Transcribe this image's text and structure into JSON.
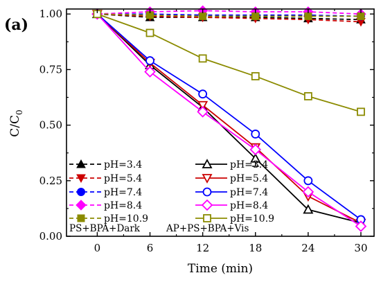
{
  "panel_label": "(a)",
  "chart_data": {
    "type": "line",
    "xlabel": "Time (min)",
    "ylabel_main": "C/C",
    "ylabel_sub": "0",
    "x_ticks": [
      0,
      6,
      12,
      18,
      24,
      30
    ],
    "y_ticks": [
      "0.00",
      "0.25",
      "0.50",
      "0.75",
      "1.00"
    ],
    "xlim": [
      -3.5,
      31.5
    ],
    "ylim": [
      0,
      1.0225
    ],
    "x": [
      0,
      6,
      12,
      18,
      24,
      30
    ],
    "groups": [
      {
        "name": "PS+BPA+Dark"
      },
      {
        "name": "AP+PS+BPA+Vis"
      }
    ],
    "series": [
      {
        "name": "pH=3.4",
        "group": 0,
        "color": "#000000",
        "marker": "triangle-up",
        "filled": true,
        "dashed": true,
        "values": [
          1.0,
          0.985,
          0.985,
          0.985,
          0.98,
          0.975
        ]
      },
      {
        "name": "pH=5.4",
        "group": 0,
        "color": "#cc0000",
        "marker": "triangle-down",
        "filled": true,
        "dashed": true,
        "values": [
          1.0,
          0.99,
          0.985,
          0.98,
          0.975,
          0.965
        ]
      },
      {
        "name": "pH=7.4",
        "group": 0,
        "color": "#0000ff",
        "marker": "circle",
        "filled": true,
        "dashed": true,
        "values": [
          1.0,
          1.0,
          0.995,
          0.995,
          0.995,
          0.99
        ]
      },
      {
        "name": "pH=8.4",
        "group": 0,
        "color": "#ff00ff",
        "marker": "diamond",
        "filled": true,
        "dashed": true,
        "values": [
          1.0,
          1.01,
          1.015,
          1.01,
          1.01,
          1.0
        ]
      },
      {
        "name": "pH=10.9",
        "group": 0,
        "color": "#8b8b00",
        "marker": "square",
        "filled": true,
        "dashed": true,
        "values": [
          1.0,
          0.995,
          0.99,
          0.99,
          0.99,
          0.99
        ]
      },
      {
        "name": "pH=3.4",
        "group": 1,
        "color": "#000000",
        "marker": "triangle-up",
        "filled": false,
        "dashed": false,
        "values": [
          1.0,
          0.77,
          0.58,
          0.35,
          0.12,
          0.06
        ],
        "error": [
          0,
          0,
          0,
          0.035,
          0,
          0
        ]
      },
      {
        "name": "pH=5.4",
        "group": 1,
        "color": "#cc0000",
        "marker": "triangle-down",
        "filled": false,
        "dashed": false,
        "values": [
          1.0,
          0.78,
          0.59,
          0.4,
          0.18,
          0.06
        ]
      },
      {
        "name": "pH=7.4",
        "group": 1,
        "color": "#0000ff",
        "marker": "circle",
        "filled": false,
        "dashed": false,
        "values": [
          1.0,
          0.79,
          0.64,
          0.46,
          0.25,
          0.075
        ]
      },
      {
        "name": "pH=8.4",
        "group": 1,
        "color": "#ff00ff",
        "marker": "diamond",
        "filled": false,
        "dashed": false,
        "values": [
          1.0,
          0.74,
          0.56,
          0.39,
          0.2,
          0.045
        ]
      },
      {
        "name": "pH=10.9",
        "group": 1,
        "color": "#8b8b00",
        "marker": "square",
        "filled": false,
        "dashed": false,
        "values": [
          1.0,
          0.915,
          0.8,
          0.72,
          0.63,
          0.56
        ]
      }
    ],
    "legend_placement": "bottom-left",
    "grid": false
  }
}
